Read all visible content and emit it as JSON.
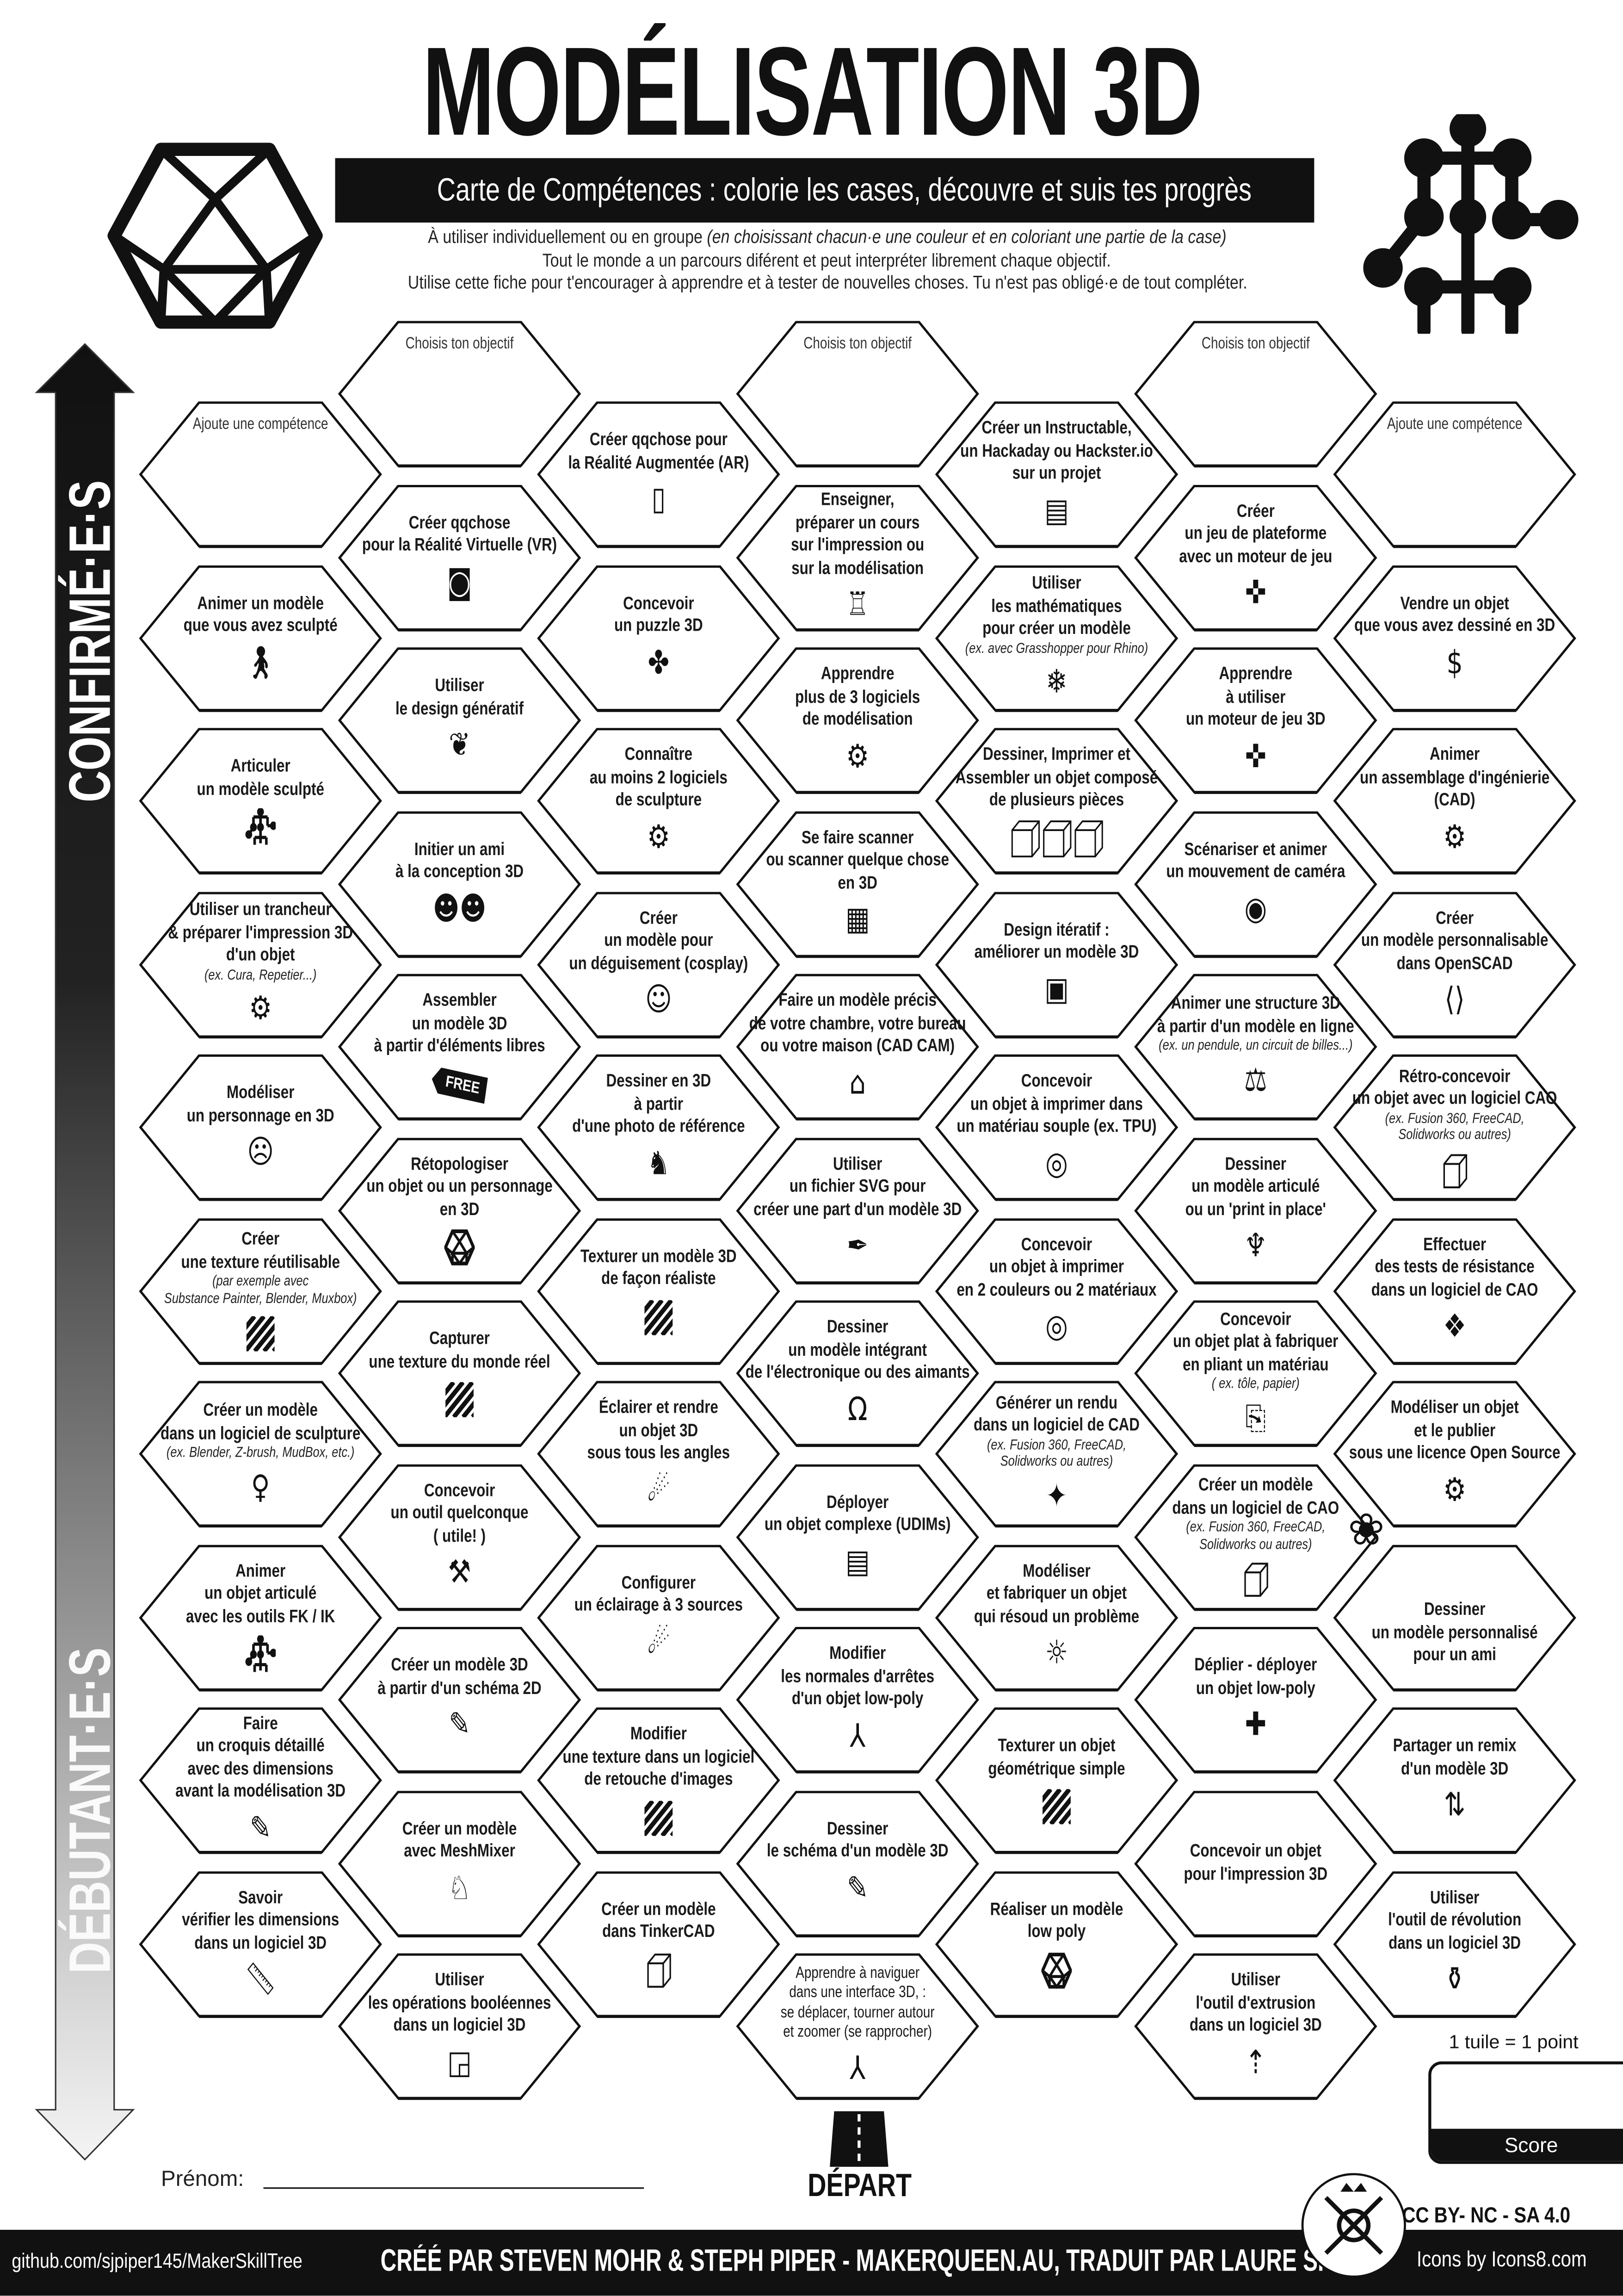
{
  "header": {
    "title": "MODÉLISATION 3D",
    "subtitle": "Carte de Compétences : colorie les cases, découvre et suis tes progrès",
    "description": {
      "line1_plain": "À utiliser individuellement ou en groupe ",
      "line1_italic": "(en choisissant chacun·e une couleur et en coloriant une partie de la case)",
      "line2": "Tout le monde a un parcours diférent et peut interpréter librement chaque objectif.",
      "line3": "Utilise cette fiche pour t'encourager à apprendre et à tester de nouvelles choses. Tu n'est pas obligé·e de tout compléter."
    },
    "left_logo_icon": "icosahedron-logo-icon",
    "right_logo_icon": "skeleton-rig-icon"
  },
  "arrow": {
    "top_label": "CONFIRMÉ·E·S",
    "bottom_label": "DÉBUTANT·E·S",
    "gradient_top": "#111111",
    "gradient_bottom": "#f4f4f4"
  },
  "columns": [
    [
      {
        "placeholder": true,
        "lines": [
          "Ajoute une compétence"
        ]
      },
      {
        "lines": [
          "Animer un modèle",
          "que vous avez sculpté"
        ],
        "icon": "walking-person"
      },
      {
        "lines": [
          "Articuler",
          "un modèle sculpté"
        ],
        "icon": "skeleton"
      },
      {
        "lines": [
          "Utiliser un trancheur",
          "& préparer l'impression 3D",
          "d'un objet"
        ],
        "notes": [
          "(ex. Cura, Repetier...)"
        ],
        "icon": "laptop-gear"
      },
      {
        "lines": [
          "Modéliser",
          "un personnage en 3D"
        ],
        "icon": "character-face"
      },
      {
        "lines": [
          "Créer",
          "une texture réutilisable"
        ],
        "notes": [
          "(par exemple avec",
          "Substance Painter, Blender, Muxbox)"
        ],
        "icon": "hatch"
      },
      {
        "lines": [
          "Créer un modèle",
          "dans un logiciel de sculpture"
        ],
        "notes": [
          "(ex. Blender, Z-brush, MudBox, etc.)"
        ],
        "icon": "statue"
      },
      {
        "lines": [
          "Animer",
          "un objet articulé",
          "avec les outils FK / IK"
        ],
        "icon": "skeleton"
      },
      {
        "lines": [
          "Faire",
          "un croquis détaillé",
          "avec des dimensions",
          "avant la modélisation 3D"
        ],
        "icon": "sketch"
      },
      {
        "lines": [
          "Savoir",
          "vérifier les dimensions",
          "dans un logiciel 3D"
        ],
        "icon": "ruler"
      }
    ],
    [
      {
        "placeholder": true,
        "lines": [
          "Choisis ton objectif"
        ]
      },
      {
        "lines": [
          "Créer qqchose",
          "pour la Réalité Virtuelle (VR)"
        ],
        "icon": "vr-headset"
      },
      {
        "lines": [
          "Utiliser",
          "le design génératif"
        ],
        "icon": "brain"
      },
      {
        "lines": [
          "Initier un ami",
          "à la conception 3D"
        ],
        "icon": "teamwork"
      },
      {
        "lines": [
          "Assembler",
          "un modèle 3D",
          "à partir d'éléments libres"
        ],
        "icon": "free-tag",
        "icon_text": "FREE"
      },
      {
        "lines": [
          "Rétopologiser",
          "un objet ou un personnage",
          "en 3D"
        ],
        "icon": "icosahedron"
      },
      {
        "lines": [
          "Capturer",
          "une texture du monde réel"
        ],
        "icon": "hatch"
      },
      {
        "lines": [
          "Concevoir",
          "un outil quelconque",
          "( utile! )"
        ],
        "icon": "tools"
      },
      {
        "lines": [
          "Créer un modèle 3D",
          "à partir d'un schéma 2D"
        ],
        "icon": "sketch"
      },
      {
        "lines": [
          "Créer un modèle",
          "avec MeshMixer"
        ],
        "icon": "rabbit"
      },
      {
        "lines": [
          "Utiliser",
          "les opérations booléennes",
          "dans un logiciel 3D"
        ],
        "icon": "boolean"
      }
    ],
    [
      {
        "lines": [
          "Créer qqchose pour",
          "la Réalité Augmentée (AR)"
        ],
        "icon": "ar-phone"
      },
      {
        "lines": [
          "Concevoir",
          "un puzzle 3D"
        ],
        "icon": "puzzle"
      },
      {
        "lines": [
          "Connaître",
          "au moins 2 logiciels",
          "de sculpture"
        ],
        "icon": "laptop-gear"
      },
      {
        "lines": [
          "Créer",
          "un modèle pour",
          "un déguisement (cosplay)"
        ],
        "icon": "cosplay"
      },
      {
        "lines": [
          "Dessiner en 3D",
          "à partir",
          "d'une photo de référence"
        ],
        "icon": "dog"
      },
      {
        "lines": [
          "Texturer un modèle 3D",
          "de façon réaliste"
        ],
        "icon": "hatch"
      },
      {
        "lines": [
          "Éclairer et rendre",
          "un objet 3D",
          "sous tous les angles"
        ],
        "icon": "spotlight"
      },
      {
        "lines": [
          "Configurer",
          "un éclairage à 3 sources"
        ],
        "icon": "spotlight"
      },
      {
        "lines": [
          "Modifier",
          "une texture dans un logiciel",
          "de retouche d'images"
        ],
        "icon": "hatch"
      },
      {
        "lines": [
          "Créer un modèle",
          "dans TinkerCAD"
        ],
        "icon": "cube"
      }
    ],
    [
      {
        "placeholder": true,
        "lines": [
          "Choisis ton objectif"
        ]
      },
      {
        "lines": [
          "Enseigner,",
          "préparer un cours",
          "sur l'impression ou",
          "sur la modélisation"
        ],
        "icon": "teacher"
      },
      {
        "lines": [
          "Apprendre",
          "plus de 3 logiciels",
          "de modélisation"
        ],
        "icon": "laptop-gear"
      },
      {
        "lines": [
          "Se faire scanner",
          "ou scanner quelque chose",
          "en 3D"
        ],
        "icon": "body-scan"
      },
      {
        "lines": [
          "Faire un modèle précis",
          "de votre chambre, votre bureau",
          "ou votre maison (CAD CAM)"
        ],
        "icon": "house"
      },
      {
        "lines": [
          "Utiliser",
          "un fichier SVG pour",
          "créer une part d'un modèle 3D"
        ],
        "icon": "pen-tool"
      },
      {
        "lines": [
          "Dessiner",
          "un modèle intégrant",
          "de l'électronique ou des aimants"
        ],
        "icon": "led"
      },
      {
        "lines": [
          "Déployer",
          "un objet complexe (UDIMs)"
        ],
        "icon": "udims"
      },
      {
        "lines": [
          "Modifier",
          "les normales d'arrêtes",
          "d'un objet low-poly"
        ],
        "icon": "normals"
      },
      {
        "lines": [
          "Dessiner",
          "le schéma d'un modèle 3D"
        ],
        "icon": "sketch"
      },
      {
        "lines": [
          "Apprendre à naviguer",
          "dans une interface 3D, :",
          "se déplacer, tourner autour",
          "et zoomer (se rapprocher)"
        ],
        "icon": "normals"
      }
    ],
    [
      {
        "lines": [
          "Créer un Instructable,",
          "un Hackaday ou Hackster.io",
          "sur un projet"
        ],
        "icon": "document-face"
      },
      {
        "lines": [
          "Utiliser",
          "les mathématiques",
          "pour créer un modèle"
        ],
        "notes": [
          "(ex. avec Grasshopper pour Rhino)"
        ],
        "icon": "fractal"
      },
      {
        "lines": [
          "Dessiner, Imprimer et",
          "Assembler un objet composé",
          "de plusieurs pièces"
        ],
        "icon": "cubes"
      },
      {
        "lines": [
          "Design itératif :",
          "améliorer un modèle 3D"
        ],
        "icon": "file-v2"
      },
      {
        "lines": [
          "Concevoir",
          "un objet à imprimer dans",
          "un matériau souple (ex. TPU)"
        ],
        "icon": "filament-spool"
      },
      {
        "lines": [
          "Concevoir",
          "un objet à imprimer",
          "en 2 couleurs ou 2 matériaux"
        ],
        "icon": "filament-spool"
      },
      {
        "lines": [
          "Générer un rendu",
          "dans un logiciel de CAD"
        ],
        "notes": [
          "(ex. Fusion 360, FreeCAD,",
          "Solidworks ou autres)"
        ],
        "icon": "render-cube"
      },
      {
        "lines": [
          "Modéliser",
          "et fabriquer un objet",
          "qui résoud un problème"
        ],
        "icon": "lightbulb"
      },
      {
        "lines": [
          "Texturer un objet",
          "géométrique simple"
        ],
        "icon": "hatch"
      },
      {
        "lines": [
          "Réaliser un modèle",
          "low poly"
        ],
        "icon": "icosahedron"
      }
    ],
    [
      {
        "placeholder": true,
        "lines": [
          "Choisis ton objectif"
        ]
      },
      {
        "lines": [
          "Créer",
          "un jeu de plateforme",
          "avec un moteur de jeu"
        ],
        "icon": "gamepad"
      },
      {
        "lines": [
          "Apprendre",
          "à utiliser",
          "un moteur de jeu 3D"
        ],
        "icon": "gamepad"
      },
      {
        "lines": [
          "Scénariser et animer",
          "un mouvement de caméra"
        ],
        "icon": "camera"
      },
      {
        "lines": [
          "Animer une structure 3D",
          "à partir d'un modèle en ligne"
        ],
        "notes": [
          "(ex. un pendule, un circuit de billes...)"
        ],
        "icon": "pendulum"
      },
      {
        "lines": [
          "Dessiner",
          "un modèle articulé",
          "ou un 'print in place'"
        ],
        "icon": "dragon"
      },
      {
        "lines": [
          "Concevoir",
          "un objet plat à fabriquer",
          "en pliant un matériau"
        ],
        "notes": [
          "( ex. tôle, papier)"
        ],
        "icon": "folded-sheet"
      },
      {
        "lines": [
          "Créer un modèle",
          "dans un logiciel de CAO"
        ],
        "notes": [
          "(ex. Fusion 360, FreeCAD,",
          "Solidworks ou autres)"
        ],
        "icon": "cube"
      },
      {
        "lines": [
          "Déplier - déployer",
          "un objet low-poly"
        ],
        "icon": "unfold"
      },
      {
        "lines": [
          "Concevoir un objet",
          "pour  l'impression 3D"
        ]
      },
      {
        "lines": [
          "Utiliser",
          "l'outil d'extrusion",
          "dans un logiciel 3D"
        ],
        "icon": "extrude"
      }
    ],
    [
      {
        "placeholder": true,
        "lines": [
          "Ajoute une compétence"
        ]
      },
      {
        "lines": [
          "Vendre un objet",
          "que vous avez dessiné en 3D"
        ],
        "icon": "money-bag"
      },
      {
        "lines": [
          "Animer",
          "un assemblage d'ingénierie",
          "(CAD)"
        ],
        "icon": "gears"
      },
      {
        "lines": [
          "Créer",
          "un modèle personnalisable",
          "dans OpenSCAD"
        ],
        "icon": "code-file"
      },
      {
        "lines": [
          "Rétro-concevoir",
          "un objet avec un logiciel CAO"
        ],
        "notes": [
          "(ex. Fusion 360, FreeCAD,",
          "Solidworks ou autres)"
        ],
        "icon": "cube"
      },
      {
        "lines": [
          "Effectuer",
          "des tests de résistance",
          "dans un logiciel de CAO"
        ],
        "icon": "stress-test"
      },
      {
        "lines": [
          "Modéliser un objet",
          "et le publier",
          "sous une licence Open Source"
        ],
        "icon": "open-source"
      },
      {
        "lines": [
          "Dessiner",
          "un modèle personnalisé",
          "pour un ami"
        ],
        "icon": "gift-bow"
      },
      {
        "lines": [
          "Partager un remix",
          "d'un modèle 3D"
        ],
        "icon": "remix"
      },
      {
        "lines": [
          "Utiliser",
          "l'outil de révolution",
          "dans un logiciel 3D"
        ],
        "icon": "vase"
      }
    ]
  ],
  "score": {
    "rule": "1 tuile = 1 point",
    "label": "Score",
    "value": ""
  },
  "name_field": {
    "label": "Prénom:",
    "value": ""
  },
  "start": {
    "label": "DÉPART",
    "icon": "road-icon"
  },
  "license": {
    "text": "CC BY- NC - SA 4.0",
    "logo_icon": "maker-tools-logo"
  },
  "footer": {
    "repo": "github.com/sjpiper145/MakerSkillTree",
    "credits": "CRÉÉ PAR STEVEN MOHR & STEPH PIPER - MAKERQUEEN.AU, TRADUIT PAR LAURE SI",
    "icons_credit": "Icons by Icons8.com",
    "background": "#111111"
  }
}
